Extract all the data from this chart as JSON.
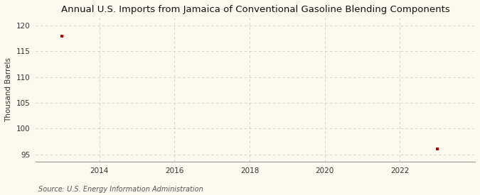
{
  "title": "Annual U.S. Imports from Jamaica of Conventional Gasoline Blending Components",
  "ylabel": "Thousand Barrels",
  "source": "Source: U.S. Energy Information Administration",
  "x_data": [
    2013,
    2023
  ],
  "y_data": [
    118,
    96
  ],
  "xlim": [
    2012.3,
    2024.0
  ],
  "ylim": [
    93.5,
    121.5
  ],
  "xticks": [
    2014,
    2016,
    2018,
    2020,
    2022
  ],
  "yticks": [
    95,
    100,
    105,
    110,
    115,
    120
  ],
  "marker_color": "#bb0000",
  "marker": "s",
  "marker_size": 3.5,
  "bg_color": "#fef9ee",
  "grid_color": "#cccccc",
  "title_fontsize": 9.5,
  "label_fontsize": 7.5,
  "tick_fontsize": 7.5,
  "source_fontsize": 7.0
}
